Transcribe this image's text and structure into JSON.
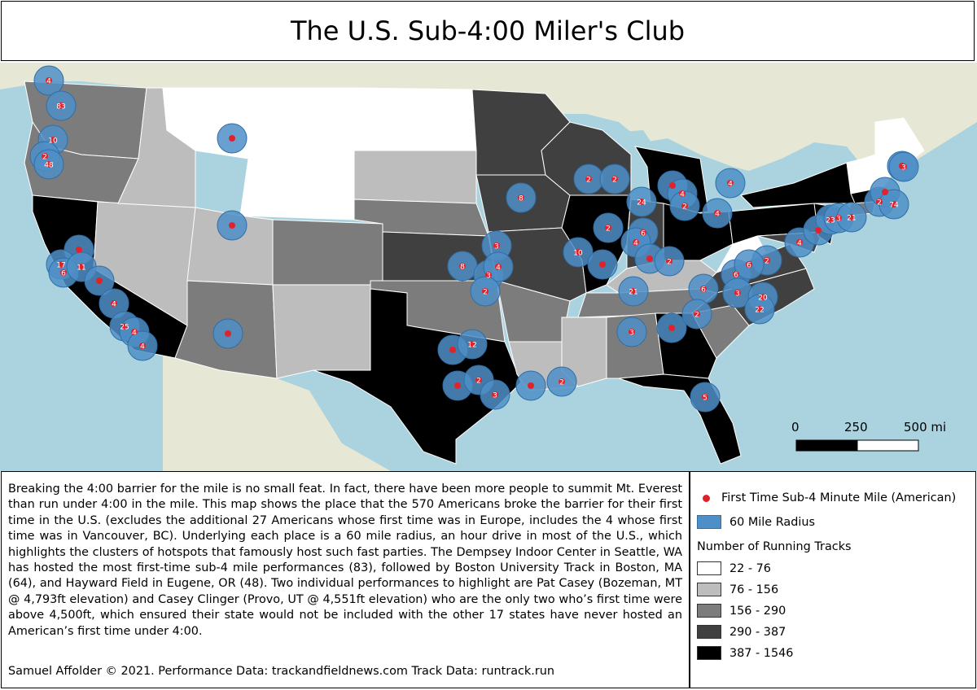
{
  "title": "The U.S. Sub-4:00 Miler's Club",
  "description": "Breaking the 4:00 barrier for the mile is no small feat.  In fact, there have been more people to summit Mt. Everest than run under 4:00 in the mile.  This map shows the place that the 570 Americans broke the barrier for their first time in the U.S. (excludes the additional 27 Americans whose first time was in Europe, includes the 4 whose first time was in Vancouver, BC).  Underlying each place is a 60 mile radius, an hour drive in most of the U.S., which highlights the clusters of hotspots that famously host such fast parties.  The Dempsey Indoor Center in Seattle, WA has hosted the most first-time sub-4 mile performances (83), followed by Boston University Track in Boston, MA (64), and Hayward Field in Eugene, OR (48).  Two individual performances to highlight are Pat Casey (Bozeman, MT @ 4,793ft elevation) and Casey Clinger (Provo, UT @ 4,551ft elevation) who are the only two who’s first time were above 4,500ft, which ensured their state would not be included with the other 17 states have never hosted an American’s first time under 4:00.",
  "credit": "Samuel Affolder © 2021.  Performance Data: trackandfieldnews.com Track Data: runtrack.run",
  "legend": {
    "point_label": "First Time Sub-4 Minute Mile (American)",
    "radius_label": "60 Mile Radius",
    "tracks_title": "Number of Running Tracks",
    "classes": [
      {
        "label": "22 - 76",
        "color": "#ffffff"
      },
      {
        "label": "76 - 156",
        "color": "#bdbdbd"
      },
      {
        "label": "156 - 290",
        "color": "#7c7c7c"
      },
      {
        "label": "290 - 387",
        "color": "#404040"
      },
      {
        "label": "387 - 1546",
        "color": "#000000"
      }
    ]
  },
  "scale_bar": {
    "labels": [
      "0",
      "250",
      "500 mi"
    ]
  },
  "colors": {
    "point": "#e0232b",
    "radius_fill": "#4f8fc7",
    "water": "#aad3df",
    "land": "#e8e4d8"
  },
  "cities": [
    {
      "count": "4"
    },
    {
      "count": "83"
    },
    {
      "count": "10"
    },
    {
      "count": "2"
    },
    {
      "count": "48"
    },
    {
      "count": ""
    },
    {
      "count": "17"
    },
    {
      "count": "6"
    },
    {
      "count": "11"
    },
    {
      "count": ""
    },
    {
      "count": "4"
    },
    {
      "count": "25"
    },
    {
      "count": "4"
    },
    {
      "count": "4"
    },
    {
      "count": ""
    },
    {
      "count": ""
    },
    {
      "count": ""
    },
    {
      "count": "8"
    },
    {
      "count": "3"
    },
    {
      "count": "8"
    },
    {
      "count": "3"
    },
    {
      "count": "4"
    },
    {
      "count": "2"
    },
    {
      "count": ""
    },
    {
      "count": "12"
    },
    {
      "count": ""
    },
    {
      "count": "2"
    },
    {
      "count": "3"
    },
    {
      "count": ""
    },
    {
      "count": "2"
    },
    {
      "count": "2"
    },
    {
      "count": "2"
    },
    {
      "count": "10"
    },
    {
      "count": ""
    },
    {
      "count": "2"
    },
    {
      "count": "24"
    },
    {
      "count": "6"
    },
    {
      "count": "4"
    },
    {
      "count": ""
    },
    {
      "count": "2"
    },
    {
      "count": "21"
    },
    {
      "count": "3"
    },
    {
      "count": ""
    },
    {
      "count": "4"
    },
    {
      "count": "4"
    },
    {
      "count": "2"
    },
    {
      "count": "4"
    },
    {
      "count": ""
    },
    {
      "count": "6"
    },
    {
      "count": "2"
    },
    {
      "count": "2"
    },
    {
      "count": "6"
    },
    {
      "count": "3"
    },
    {
      "count": "20"
    },
    {
      "count": "22"
    },
    {
      "count": "6"
    },
    {
      "count": "5"
    },
    {
      "count": "4"
    },
    {
      "count": ""
    },
    {
      "count": "23"
    },
    {
      "count": "3"
    },
    {
      "count": "21"
    },
    {
      "count": "2"
    },
    {
      "count": ""
    },
    {
      "count": "74"
    },
    {
      "count": ""
    },
    {
      "count": "3"
    }
  ]
}
